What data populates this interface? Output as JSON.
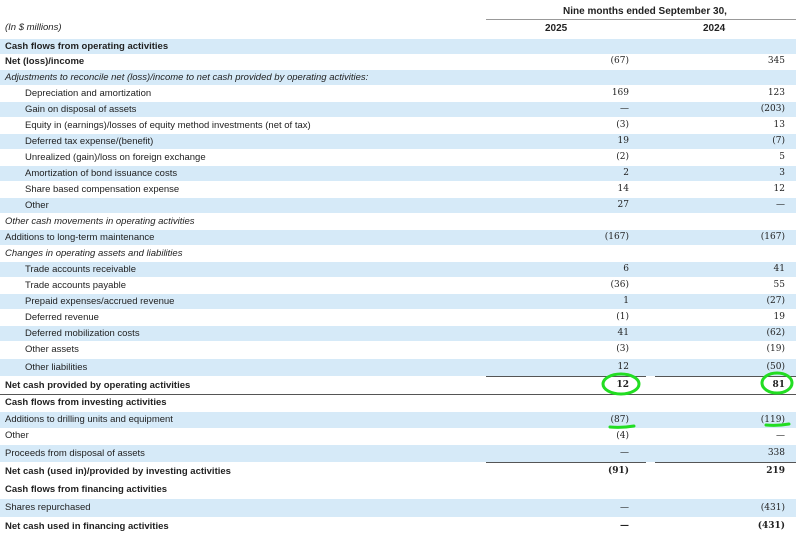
{
  "header": {
    "units": "(In $ millions)",
    "period": "Nine months ended September 30,",
    "col_2025": "2025",
    "col_2024": "2024"
  },
  "rows": [
    {
      "label": "Cash flows from operating activities",
      "v2025": "",
      "v2024": "",
      "style": "bold",
      "shaded": true
    },
    {
      "label": "Net (loss)/income",
      "v2025": "(67)",
      "v2024": "345",
      "style": "bold-label",
      "shaded": false
    },
    {
      "label": "Adjustments to reconcile net (loss)/income to net cash provided by operating activities:",
      "v2025": "",
      "v2024": "",
      "style": "italic",
      "shaded": true
    },
    {
      "label": "Depreciation and amortization",
      "v2025": "169",
      "v2024": "123",
      "style": "indent",
      "shaded": false
    },
    {
      "label": "Gain on disposal of assets",
      "v2025": "—",
      "v2024": "(203)",
      "style": "indent",
      "shaded": true
    },
    {
      "label": "Equity in (earnings)/losses of equity method investments (net of tax)",
      "v2025": "(3)",
      "v2024": "13",
      "style": "indent",
      "shaded": false
    },
    {
      "label": "Deferred tax expense/(benefit)",
      "v2025": "19",
      "v2024": "(7)",
      "style": "indent",
      "shaded": true
    },
    {
      "label": "Unrealized (gain)/loss on foreign exchange",
      "v2025": "(2)",
      "v2024": "5",
      "style": "indent",
      "shaded": false
    },
    {
      "label": "Amortization of bond issuance costs",
      "v2025": "2",
      "v2024": "3",
      "style": "indent",
      "shaded": true
    },
    {
      "label": "Share based compensation expense",
      "v2025": "14",
      "v2024": "12",
      "style": "indent",
      "shaded": false
    },
    {
      "label": "Other",
      "v2025": "27",
      "v2024": "—",
      "style": "indent",
      "shaded": true
    },
    {
      "label": "Other cash movements in operating activities",
      "v2025": "",
      "v2024": "",
      "style": "italic",
      "shaded": false
    },
    {
      "label": "Additions to long-term maintenance",
      "v2025": "(167)",
      "v2024": "(167)",
      "style": "plain",
      "shaded": true
    },
    {
      "label": "Changes in operating assets and liabilities",
      "v2025": "",
      "v2024": "",
      "style": "italic",
      "shaded": false
    },
    {
      "label": "Trade accounts receivable",
      "v2025": "6",
      "v2024": "41",
      "style": "indent",
      "shaded": true
    },
    {
      "label": "Trade accounts payable",
      "v2025": "(36)",
      "v2024": "55",
      "style": "indent",
      "shaded": false
    },
    {
      "label": "Prepaid expenses/accrued revenue",
      "v2025": "1",
      "v2024": "(27)",
      "style": "indent",
      "shaded": true
    },
    {
      "label": "Deferred revenue",
      "v2025": "(1)",
      "v2024": "19",
      "style": "indent",
      "shaded": false
    },
    {
      "label": "Deferred mobilization costs",
      "v2025": "41",
      "v2024": "(62)",
      "style": "indent",
      "shaded": true
    },
    {
      "label": "Other assets",
      "v2025": "(3)",
      "v2024": "(19)",
      "style": "indent",
      "shaded": false
    },
    {
      "label": "Other liabilities",
      "v2025": "12",
      "v2024": "(50)",
      "style": "indent",
      "shaded": true
    },
    {
      "label": "Net cash provided by operating activities",
      "v2025": "12",
      "v2024": "81",
      "style": "bold",
      "shaded": false
    },
    {
      "label": "Cash flows from investing activities",
      "v2025": "",
      "v2024": "",
      "style": "bold",
      "shaded": false
    },
    {
      "label": "Additions to drilling units and equipment",
      "v2025": "(87)",
      "v2024": "(119)",
      "style": "plain",
      "shaded": true
    },
    {
      "label": "Other",
      "v2025": "(4)",
      "v2024": "—",
      "style": "plain",
      "shaded": false
    },
    {
      "label": "Proceeds from disposal of assets",
      "v2025": "—",
      "v2024": "338",
      "style": "plain",
      "shaded": true
    },
    {
      "label": "Net cash (used in)/provided by investing activities",
      "v2025": "(91)",
      "v2024": "219",
      "style": "bold",
      "shaded": false
    },
    {
      "label": "Cash flows from financing activities",
      "v2025": "",
      "v2024": "",
      "style": "bold",
      "shaded": false
    },
    {
      "label": "Shares repurchased",
      "v2025": "—",
      "v2024": "(431)",
      "style": "plain",
      "shaded": true
    },
    {
      "label": "Net cash used in financing activities",
      "v2025": "—",
      "v2024": "(431)",
      "style": "bold",
      "shaded": false
    }
  ],
  "colors": {
    "row_shade": "#d6eaf8",
    "annotation_green": "#22dd22"
  },
  "annotations": [
    {
      "kind": "circle",
      "target": "Net cash provided by operating activities 2025"
    },
    {
      "kind": "circle",
      "target": "Net cash provided by operating activities 2024"
    },
    {
      "kind": "underline",
      "target": "Additions to drilling units and equipment 2025"
    },
    {
      "kind": "underline",
      "target": "Additions to drilling units and equipment 2024"
    }
  ]
}
